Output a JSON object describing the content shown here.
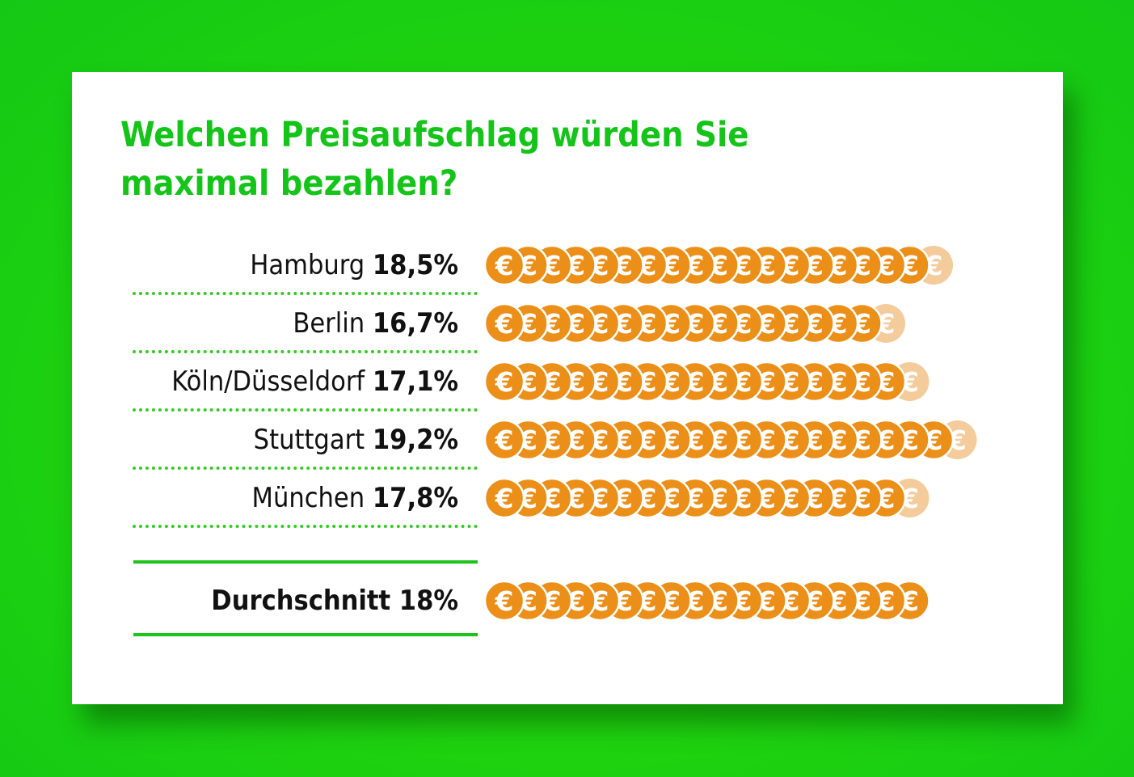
{
  "title_lines": [
    "Welchen Preisaufschlag würden Sie",
    "maximal bezahlen?"
  ],
  "colors": {
    "background": "#22d40e",
    "title": "#14c419",
    "coin": "#ec8f18",
    "coin_faded": "#f4cc9c",
    "separator": "#33cc22"
  },
  "icon": "euro-coin-icon",
  "coin_symbol": "€",
  "chart_data": {
    "type": "bar",
    "categories": [
      "Hamburg",
      "Berlin",
      "Köln/Düsseldorf",
      "Stuttgart",
      "München"
    ],
    "values": [
      18.5,
      16.7,
      17.1,
      19.2,
      17.8
    ],
    "value_labels": [
      "18,5%",
      "16,7%",
      "17,1%",
      "19,2%",
      "17,8%"
    ],
    "average": {
      "label": "Durchschnitt",
      "value": 18,
      "value_label": "18%"
    },
    "unit": "%"
  }
}
